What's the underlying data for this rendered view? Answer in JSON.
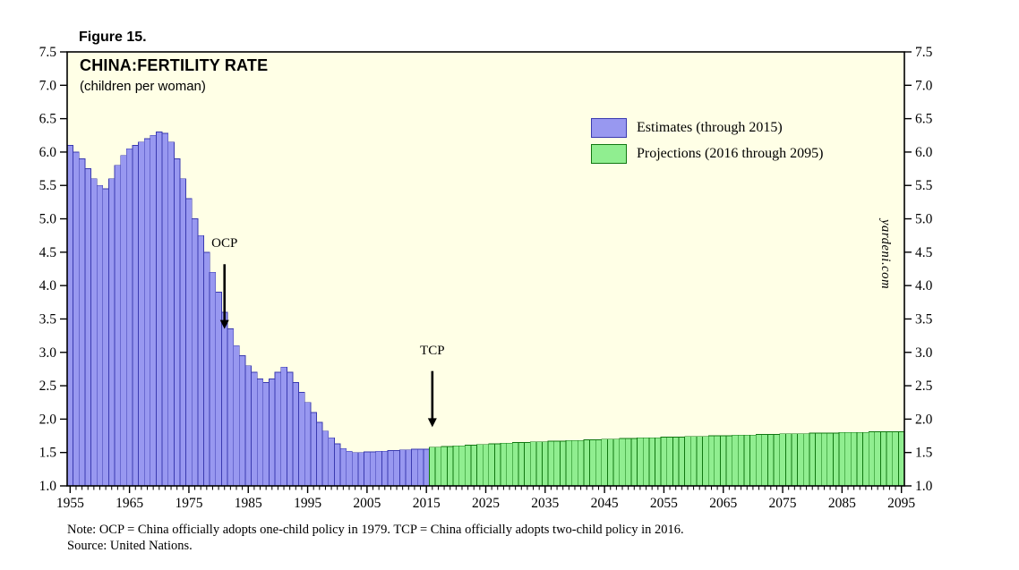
{
  "figure_label": "Figure 15.",
  "chart_data": {
    "type": "bar",
    "title": "CHINA:FERTILITY RATE",
    "subtitle": "(children per woman)",
    "watermark": "yardeni.com",
    "ylabel": "children per woman",
    "ylim": [
      1.0,
      7.5
    ],
    "ytick_step": 0.5,
    "x_start": 1955,
    "x_end": 2095,
    "xticks": [
      1955,
      1965,
      1975,
      1985,
      1995,
      2005,
      2015,
      2025,
      2035,
      2045,
      2055,
      2065,
      2075,
      2085,
      2095
    ],
    "grid": false,
    "legend_position": "inside-top-right",
    "background": "#FFFFE6",
    "series": [
      {
        "name": "Estimates (through 2015)",
        "x_start": 1955,
        "color": "#9898F0",
        "border_color": "#3A3AB0",
        "values": [
          6.1,
          6.0,
          5.9,
          5.75,
          5.6,
          5.5,
          5.45,
          5.6,
          5.8,
          5.95,
          6.05,
          6.1,
          6.15,
          6.2,
          6.25,
          6.3,
          6.28,
          6.15,
          5.9,
          5.6,
          5.3,
          5.0,
          4.75,
          4.5,
          4.2,
          3.9,
          3.6,
          3.35,
          3.1,
          2.95,
          2.8,
          2.7,
          2.6,
          2.55,
          2.6,
          2.7,
          2.78,
          2.7,
          2.55,
          2.4,
          2.25,
          2.1,
          1.95,
          1.82,
          1.72,
          1.63,
          1.56,
          1.52,
          1.5,
          1.5,
          1.51,
          1.51,
          1.52,
          1.52,
          1.53,
          1.53,
          1.54,
          1.54,
          1.55,
          1.55,
          1.55
        ]
      },
      {
        "name": "Projections (2016 through 2095)",
        "x_start": 2016,
        "color": "#90EE90",
        "border_color": "#117711",
        "values": [
          1.58,
          1.58,
          1.59,
          1.59,
          1.6,
          1.6,
          1.61,
          1.61,
          1.62,
          1.62,
          1.63,
          1.63,
          1.64,
          1.64,
          1.65,
          1.65,
          1.65,
          1.66,
          1.66,
          1.66,
          1.67,
          1.67,
          1.67,
          1.68,
          1.68,
          1.68,
          1.69,
          1.69,
          1.69,
          1.7,
          1.7,
          1.7,
          1.71,
          1.71,
          1.71,
          1.72,
          1.72,
          1.72,
          1.72,
          1.73,
          1.73,
          1.73,
          1.73,
          1.74,
          1.74,
          1.74,
          1.74,
          1.75,
          1.75,
          1.75,
          1.75,
          1.76,
          1.76,
          1.76,
          1.76,
          1.77,
          1.77,
          1.77,
          1.77,
          1.78,
          1.78,
          1.78,
          1.78,
          1.78,
          1.79,
          1.79,
          1.79,
          1.79,
          1.79,
          1.8,
          1.8,
          1.8,
          1.8,
          1.8,
          1.81,
          1.81,
          1.81,
          1.81,
          1.81,
          1.81
        ]
      }
    ],
    "annotations": [
      {
        "label": "OCP",
        "year": 1981,
        "label_value": 4.58,
        "arrow_from": 4.32,
        "arrow_to": 3.35
      },
      {
        "label": "TCP",
        "year": 2016,
        "label_value": 2.97,
        "arrow_from": 2.72,
        "arrow_to": 1.88
      }
    ]
  },
  "notes": {
    "note": "Note: OCP = China officially adopts one-child policy in 1979. TCP = China officially adopts two-child policy in 2016.",
    "source": "Source: United Nations."
  }
}
